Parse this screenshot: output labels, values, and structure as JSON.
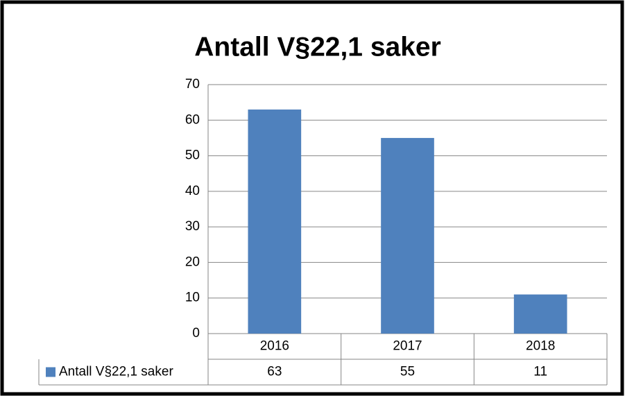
{
  "chart_data": {
    "type": "bar",
    "title": "Antall V§22,1 saker",
    "categories": [
      "2016",
      "2017",
      "2018"
    ],
    "series": [
      {
        "name": "Antall V§22,1 saker",
        "color": "#4f81bd",
        "values": [
          63,
          55,
          11
        ]
      }
    ],
    "ylim": [
      0,
      70
    ],
    "yticks": [
      0,
      10,
      20,
      30,
      40,
      50,
      60,
      70
    ],
    "grid": true,
    "data_table": true
  }
}
